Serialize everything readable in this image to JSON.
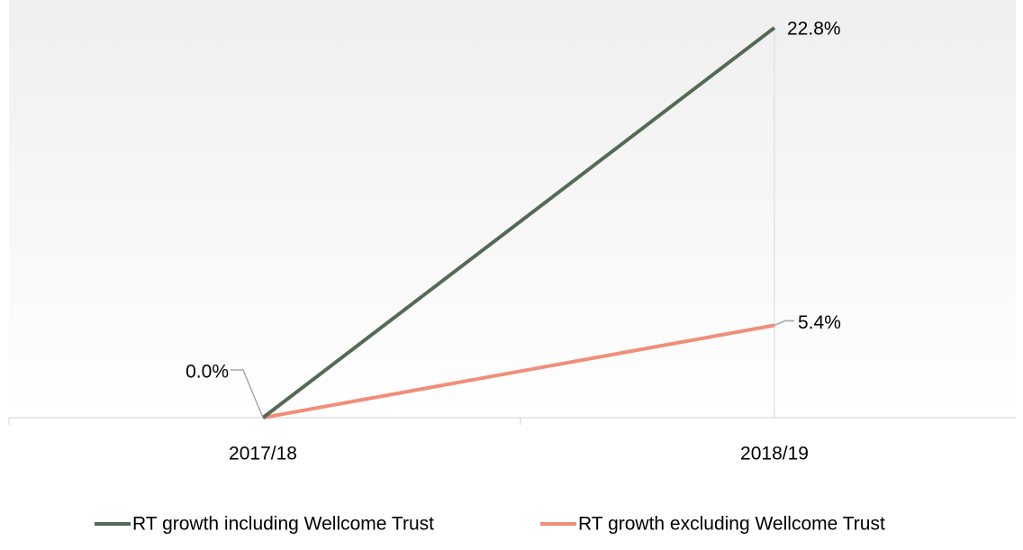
{
  "chart_data": {
    "type": "line",
    "categories": [
      "2017/18",
      "2018/19"
    ],
    "series": [
      {
        "name": "RT growth including Wellcome Trust",
        "color": "#536b55",
        "values": [
          0,
          22.8
        ],
        "value_labels": [
          "0.0%",
          "22.8%"
        ]
      },
      {
        "name": "RT growth excluding Wellcome Trust",
        "color": "#f08e78",
        "values": [
          0,
          5.4
        ],
        "value_labels": [
          null,
          "5.4%"
        ]
      }
    ],
    "ylim": [
      0,
      24
    ],
    "legend": "bottom"
  }
}
